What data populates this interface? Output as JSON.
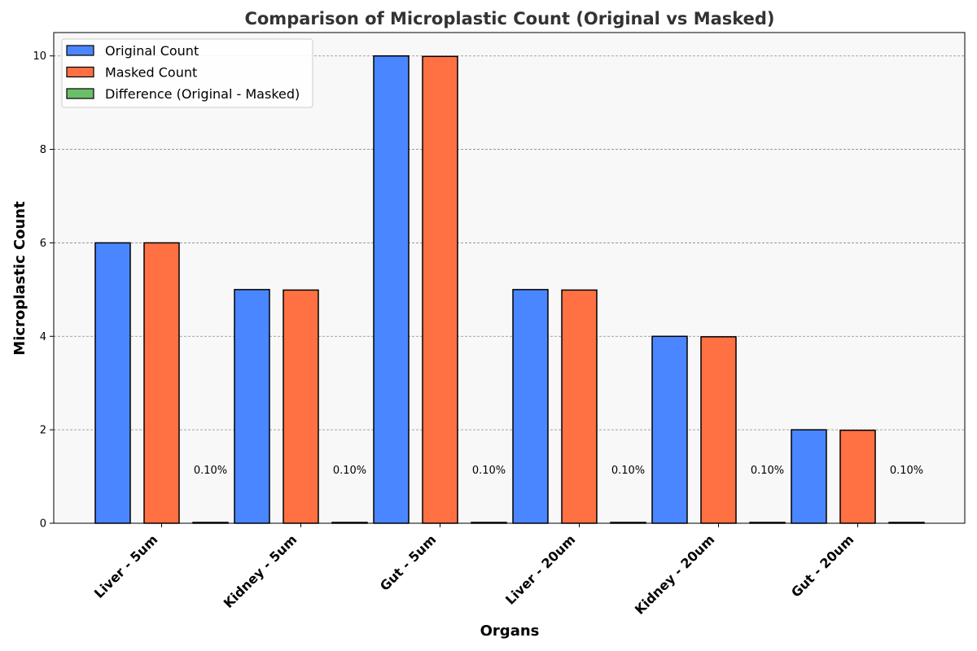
{
  "chart_data": {
    "type": "bar",
    "title": "Comparison of Microplastic Count (Original vs Masked)",
    "xlabel": "Organs",
    "ylabel": "Microplastic Count",
    "categories": [
      "Liver - 5um",
      "Kidney - 5um",
      "Gut - 5um",
      "Liver - 20um",
      "Kidney - 20um",
      "Gut - 20um"
    ],
    "series": [
      {
        "name": "Original Count",
        "color": "#4a86ff",
        "values": [
          6,
          5,
          10,
          5,
          4,
          2
        ]
      },
      {
        "name": "Masked Count",
        "color": "#ff7043",
        "values": [
          6,
          4.99,
          9.99,
          4.99,
          3.99,
          1.99
        ]
      },
      {
        "name": "Difference (Original - Masked)",
        "color": "#6abf69",
        "values": [
          0.006,
          0.005,
          0.01,
          0.005,
          0.004,
          0.002
        ]
      }
    ],
    "difference_labels": [
      "0.10%",
      "0.10%",
      "0.10%",
      "0.10%",
      "0.10%",
      "0.10%"
    ],
    "ylim": [
      0,
      10.5
    ],
    "yticks": [
      "0",
      "2",
      "4",
      "6",
      "8",
      "10"
    ],
    "grid": true,
    "legend_position": "top-left",
    "background_color": "#f8f8f8"
  }
}
